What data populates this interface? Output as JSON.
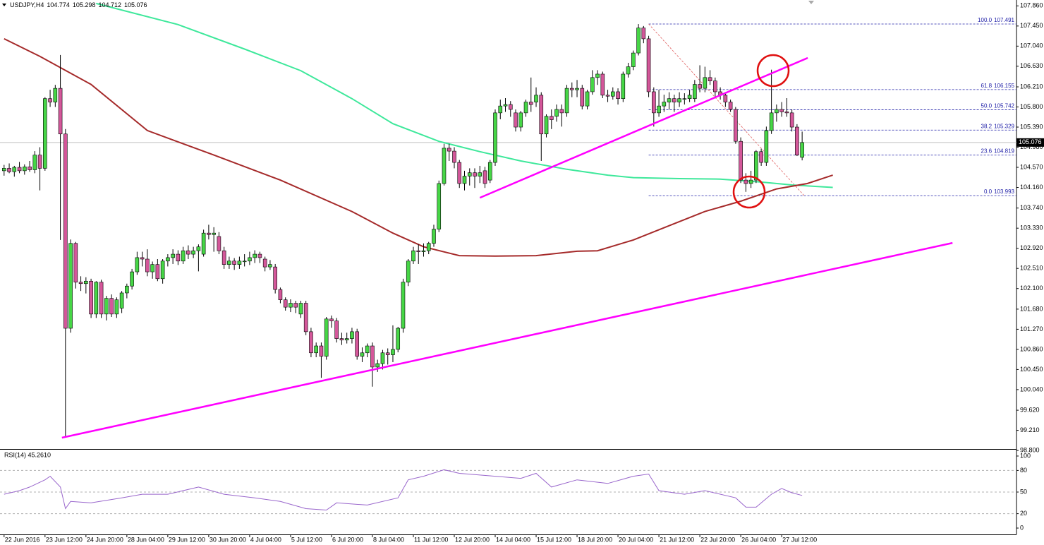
{
  "chart_data": {
    "type": "candlestick",
    "symbol": "USDJPY,H4",
    "bull_color": "#46d646",
    "bear_color": "#d4579a",
    "xlim": [
      -0.8,
      197.9
    ],
    "ylim": [
      98.83,
      107.98
    ],
    "grid": false,
    "xticks": [
      {
        "value": 0,
        "label": "22 Jun 2016"
      },
      {
        "value": 8,
        "label": "23 Jun 12:00"
      },
      {
        "value": 16,
        "label": "24 Jun 20:00"
      },
      {
        "value": 24,
        "label": "28 Jun 04:00"
      },
      {
        "value": 32,
        "label": "29 Jun 12:00"
      },
      {
        "value": 40,
        "label": "30 Jun 20:00"
      },
      {
        "value": 48,
        "label": "4 Jul 04:00"
      },
      {
        "value": 56,
        "label": "5 Jul 12:00"
      },
      {
        "value": 64,
        "label": "6 Jul 20:00"
      },
      {
        "value": 72,
        "label": "8 Jul 04:00"
      },
      {
        "value": 80,
        "label": "11 Jul 12:00"
      },
      {
        "value": 88,
        "label": "12 Jul 20:00"
      },
      {
        "value": 96,
        "label": "14 Jul 04:00"
      },
      {
        "value": 104,
        "label": "15 Jul 12:00"
      },
      {
        "value": 112,
        "label": "18 Jul 20:00"
      },
      {
        "value": 120,
        "label": "20 Jul 04:00"
      },
      {
        "value": 128,
        "label": "21 Jul 12:00"
      },
      {
        "value": 136,
        "label": "22 Jul 20:00"
      },
      {
        "value": 144,
        "label": "26 Jul 04:00"
      },
      {
        "value": 152,
        "label": "27 Jul 12:00"
      }
    ],
    "yticks": [
      {
        "value": 107.86,
        "label": "107.860"
      },
      {
        "value": 107.45,
        "label": "107.450"
      },
      {
        "value": 107.04,
        "label": "107.040"
      },
      {
        "value": 106.63,
        "label": "106.630"
      },
      {
        "value": 106.21,
        "label": "106.210"
      },
      {
        "value": 105.8,
        "label": "105.800"
      },
      {
        "value": 105.39,
        "label": "105.390"
      },
      {
        "value": 104.98,
        "label": "104.980"
      },
      {
        "value": 104.57,
        "label": "104.570"
      },
      {
        "value": 104.16,
        "label": "104.160"
      },
      {
        "value": 103.74,
        "label": "103.740"
      },
      {
        "value": 103.33,
        "label": "103.330"
      },
      {
        "value": 102.92,
        "label": "102.920"
      },
      {
        "value": 102.51,
        "label": "102.510"
      },
      {
        "value": 102.1,
        "label": "102.100"
      },
      {
        "value": 101.68,
        "label": "101.680"
      },
      {
        "value": 101.27,
        "label": "101.270"
      },
      {
        "value": 100.86,
        "label": "100.860"
      },
      {
        "value": 100.45,
        "label": "100.450"
      },
      {
        "value": 100.04,
        "label": "100.040"
      },
      {
        "value": 99.62,
        "label": "99.620"
      },
      {
        "value": 99.21,
        "label": "99.210"
      },
      {
        "value": 98.8,
        "label": "98.800"
      }
    ],
    "ohlc": [
      [
        104.5,
        104.62,
        104.4,
        104.55
      ],
      [
        104.55,
        104.65,
        104.45,
        104.48
      ],
      [
        104.48,
        104.6,
        104.38,
        104.57
      ],
      [
        104.57,
        104.68,
        104.45,
        104.5
      ],
      [
        104.5,
        104.63,
        104.42,
        104.58
      ],
      [
        104.58,
        104.7,
        104.48,
        104.52
      ],
      [
        104.52,
        104.9,
        104.45,
        104.82
      ],
      [
        104.82,
        104.98,
        104.1,
        104.55
      ],
      [
        104.55,
        106.0,
        104.5,
        105.97
      ],
      [
        105.97,
        106.15,
        105.8,
        105.9
      ],
      [
        105.9,
        106.25,
        105.8,
        106.18
      ],
      [
        106.18,
        106.86,
        103.09,
        105.25
      ],
      [
        105.25,
        105.35,
        99.09,
        101.29
      ],
      [
        101.29,
        103.1,
        101.2,
        103.02
      ],
      [
        103.02,
        103.05,
        102.1,
        102.23
      ],
      [
        102.23,
        102.35,
        102.05,
        102.2
      ],
      [
        102.2,
        102.33,
        102.0,
        102.25
      ],
      [
        102.25,
        102.3,
        101.5,
        101.58
      ],
      [
        101.58,
        102.25,
        101.5,
        102.23
      ],
      [
        102.23,
        102.28,
        101.5,
        101.58
      ],
      [
        101.58,
        101.95,
        101.45,
        101.9
      ],
      [
        101.9,
        101.98,
        101.52,
        101.58
      ],
      [
        101.58,
        101.92,
        101.5,
        101.87
      ],
      [
        101.7,
        102.05,
        101.6,
        102.01
      ],
      [
        102.01,
        102.2,
        101.9,
        102.15
      ],
      [
        102.15,
        102.5,
        102.08,
        102.44
      ],
      [
        102.44,
        102.85,
        102.38,
        102.73
      ],
      [
        102.73,
        102.85,
        102.55,
        102.7
      ],
      [
        102.7,
        102.9,
        102.35,
        102.44
      ],
      [
        102.44,
        102.65,
        102.3,
        102.59
      ],
      [
        102.59,
        102.7,
        102.25,
        102.3
      ],
      [
        102.3,
        102.7,
        102.2,
        102.66
      ],
      [
        102.66,
        102.8,
        102.55,
        102.73
      ],
      [
        102.73,
        102.9,
        102.6,
        102.8
      ],
      [
        102.8,
        102.88,
        102.58,
        102.66
      ],
      [
        102.66,
        102.95,
        102.6,
        102.87
      ],
      [
        102.87,
        102.98,
        102.7,
        102.8
      ],
      [
        102.8,
        102.95,
        102.72,
        102.87
      ],
      [
        102.87,
        103.0,
        102.45,
        102.95
      ],
      [
        102.8,
        103.3,
        102.75,
        103.23
      ],
      [
        103.23,
        103.4,
        103.1,
        103.2
      ],
      [
        103.2,
        103.35,
        102.85,
        103.23
      ],
      [
        103.16,
        103.25,
        102.8,
        102.87
      ],
      [
        102.87,
        102.95,
        102.5,
        102.59
      ],
      [
        102.59,
        102.75,
        102.5,
        102.66
      ],
      [
        102.66,
        102.72,
        102.48,
        102.59
      ],
      [
        102.59,
        102.75,
        102.5,
        102.66
      ],
      [
        102.66,
        102.8,
        102.55,
        102.66
      ],
      [
        102.66,
        102.85,
        102.58,
        102.73
      ],
      [
        102.73,
        102.88,
        102.62,
        102.8
      ],
      [
        102.8,
        102.85,
        102.62,
        102.73
      ],
      [
        102.7,
        102.75,
        102.45,
        102.54
      ],
      [
        102.54,
        102.68,
        102.48,
        102.59
      ],
      [
        102.54,
        102.6,
        102.0,
        102.08
      ],
      [
        102.08,
        102.12,
        101.8,
        101.87
      ],
      [
        101.87,
        101.92,
        101.65,
        101.72
      ],
      [
        101.72,
        101.88,
        101.62,
        101.8
      ],
      [
        101.8,
        101.85,
        101.6,
        101.72
      ],
      [
        101.58,
        101.85,
        101.5,
        101.8
      ],
      [
        101.8,
        101.85,
        101.15,
        101.22
      ],
      [
        101.22,
        101.3,
        100.7,
        100.79
      ],
      [
        100.79,
        101.0,
        100.7,
        100.93
      ],
      [
        100.93,
        101.0,
        100.28,
        100.72
      ],
      [
        100.72,
        101.52,
        100.65,
        101.48
      ],
      [
        101.48,
        101.55,
        101.3,
        101.44
      ],
      [
        101.44,
        101.5,
        101.0,
        101.08
      ],
      [
        101.08,
        101.2,
        100.95,
        101.05
      ],
      [
        101.05,
        101.2,
        100.98,
        101.08
      ],
      [
        101.08,
        101.3,
        100.98,
        101.22
      ],
      [
        101.22,
        101.28,
        100.65,
        100.72
      ],
      [
        100.72,
        100.9,
        100.6,
        100.79
      ],
      [
        100.79,
        100.98,
        100.7,
        100.93
      ],
      [
        100.93,
        101.0,
        100.1,
        100.5
      ],
      [
        100.5,
        100.65,
        100.4,
        100.57
      ],
      [
        100.57,
        100.85,
        100.45,
        100.79
      ],
      [
        100.79,
        100.88,
        100.55,
        100.75
      ],
      [
        100.75,
        101.35,
        100.6,
        100.86
      ],
      [
        100.86,
        101.32,
        100.8,
        101.29
      ],
      [
        101.29,
        102.3,
        101.2,
        102.23
      ],
      [
        102.23,
        102.7,
        102.15,
        102.66
      ],
      [
        102.66,
        102.95,
        102.6,
        102.87
      ],
      [
        102.87,
        103.0,
        102.6,
        102.85
      ],
      [
        102.85,
        103.02,
        102.75,
        102.87
      ],
      [
        102.87,
        103.05,
        102.8,
        103.02
      ],
      [
        103.02,
        103.4,
        102.95,
        103.31
      ],
      [
        103.31,
        104.3,
        103.25,
        104.24
      ],
      [
        104.24,
        105.05,
        104.2,
        104.96
      ],
      [
        104.96,
        105.05,
        104.7,
        104.9
      ],
      [
        104.9,
        104.98,
        104.55,
        104.67
      ],
      [
        104.67,
        104.72,
        104.15,
        104.24
      ],
      [
        104.24,
        104.5,
        104.1,
        104.39
      ],
      [
        104.39,
        104.55,
        104.2,
        104.46
      ],
      [
        104.46,
        104.55,
        104.15,
        104.39
      ],
      [
        104.39,
        104.6,
        104.25,
        104.46
      ],
      [
        104.5,
        104.58,
        104.15,
        104.24
      ],
      [
        104.31,
        104.72,
        104.25,
        104.67
      ],
      [
        104.67,
        105.75,
        104.6,
        105.68
      ],
      [
        105.68,
        105.95,
        105.55,
        105.82
      ],
      [
        105.82,
        105.98,
        105.7,
        105.85
      ],
      [
        105.85,
        105.92,
        105.6,
        105.75
      ],
      [
        105.68,
        105.75,
        105.3,
        105.39
      ],
      [
        105.39,
        105.72,
        105.3,
        105.68
      ],
      [
        105.68,
        105.95,
        105.6,
        105.9
      ],
      [
        105.9,
        106.4,
        105.7,
        105.85
      ],
      [
        105.9,
        106.2,
        105.8,
        106.04
      ],
      [
        106.04,
        106.1,
        104.7,
        105.25
      ],
      [
        105.25,
        105.65,
        105.18,
        105.61
      ],
      [
        105.61,
        105.75,
        105.35,
        105.54
      ],
      [
        105.61,
        105.85,
        105.5,
        105.75
      ],
      [
        105.75,
        105.85,
        105.4,
        105.68
      ],
      [
        105.68,
        106.25,
        105.6,
        106.18
      ],
      [
        106.18,
        106.3,
        106.0,
        106.15
      ],
      [
        106.15,
        106.35,
        106.0,
        106.18
      ],
      [
        106.18,
        106.25,
        105.75,
        105.82
      ],
      [
        105.82,
        106.15,
        105.75,
        106.11
      ],
      [
        106.11,
        106.55,
        106.05,
        106.4
      ],
      [
        106.4,
        106.55,
        106.25,
        106.47
      ],
      [
        106.47,
        106.52,
        105.98,
        106.04
      ],
      [
        106.04,
        106.15,
        105.9,
        106.02
      ],
      [
        106.02,
        106.2,
        105.95,
        106.11
      ],
      [
        106.11,
        106.18,
        105.85,
        105.97
      ],
      [
        105.97,
        106.52,
        105.9,
        106.47
      ],
      [
        106.47,
        106.7,
        106.4,
        106.62
      ],
      [
        106.62,
        106.95,
        106.55,
        106.9
      ],
      [
        106.9,
        107.49,
        106.85,
        107.41
      ],
      [
        107.41,
        107.45,
        107.1,
        107.19
      ],
      [
        107.19,
        107.25,
        106.0,
        106.11
      ],
      [
        106.11,
        106.2,
        105.4,
        105.68
      ],
      [
        105.68,
        106.15,
        105.6,
        105.82
      ],
      [
        105.82,
        106.05,
        105.7,
        105.9
      ],
      [
        105.9,
        106.1,
        105.75,
        105.97
      ],
      [
        105.97,
        106.05,
        105.7,
        105.9
      ],
      [
        105.9,
        106.1,
        105.8,
        105.97
      ],
      [
        105.97,
        106.08,
        105.85,
        105.97
      ],
      [
        105.97,
        106.15,
        105.9,
        106.04
      ],
      [
        105.97,
        106.35,
        105.9,
        106.26
      ],
      [
        106.26,
        106.65,
        106.1,
        106.18
      ],
      [
        106.18,
        106.62,
        106.1,
        106.4
      ],
      [
        106.4,
        106.55,
        106.25,
        106.33
      ],
      [
        106.33,
        106.4,
        106.0,
        106.11
      ],
      [
        106.11,
        106.2,
        105.95,
        106.04
      ],
      [
        106.04,
        106.1,
        105.8,
        105.9
      ],
      [
        105.9,
        105.95,
        105.7,
        105.75
      ],
      [
        105.75,
        105.8,
        105.05,
        105.1
      ],
      [
        105.1,
        105.18,
        104.25,
        104.31
      ],
      [
        104.31,
        104.45,
        104.07,
        104.24
      ],
      [
        104.24,
        104.5,
        104.15,
        104.31
      ],
      [
        104.31,
        104.92,
        104.25,
        104.89
      ],
      [
        104.89,
        104.95,
        104.6,
        104.67
      ],
      [
        104.67,
        105.4,
        104.6,
        105.32
      ],
      [
        105.32,
        106.56,
        105.25,
        105.68
      ],
      [
        105.68,
        105.85,
        105.5,
        105.75
      ],
      [
        105.75,
        105.9,
        105.6,
        105.7
      ],
      [
        105.7,
        105.98,
        105.6,
        105.68
      ],
      [
        105.68,
        105.75,
        105.3,
        105.39
      ],
      [
        105.39,
        105.45,
        104.8,
        104.82
      ],
      [
        104.774,
        105.298,
        104.712,
        105.076
      ]
    ],
    "moving_averages": [
      {
        "color": "#3ee89b",
        "x": [
          18,
          34,
          47,
          58,
          68,
          76,
          85,
          93,
          101,
          110,
          118,
          123,
          132,
          140,
          148,
          154,
          162
        ],
        "values": [
          107.91,
          107.48,
          106.98,
          106.54,
          105.97,
          105.46,
          105.1,
          104.89,
          104.7,
          104.53,
          104.41,
          104.36,
          104.34,
          104.33,
          104.27,
          104.21,
          104.16
        ]
      },
      {
        "color": "#a52a2a",
        "x": [
          0,
          7,
          17,
          28,
          41,
          54,
          68,
          76,
          82,
          89,
          96,
          104,
          112,
          116,
          123,
          130,
          137,
          144,
          151,
          157,
          162
        ],
        "values": [
          107.19,
          106.83,
          106.26,
          105.32,
          104.82,
          104.31,
          103.67,
          103.23,
          102.95,
          102.77,
          102.76,
          102.77,
          102.86,
          102.87,
          103.09,
          103.38,
          103.67,
          103.88,
          104.13,
          104.24,
          104.41
        ]
      }
    ],
    "trendlines": [
      {
        "color": "#ff00ff",
        "x": [
          11.3,
          185.4
        ],
        "values": [
          99.06,
          103.03
        ]
      },
      {
        "color": "#ff00ff",
        "x": [
          93,
          157.1
        ],
        "values": [
          103.95,
          106.8
        ]
      }
    ],
    "fibonacci": {
      "color": "#2020a8",
      "diagonal_color": "#e06060",
      "x": [
        126,
        156.4
      ],
      "levels": [
        {
          "level": "100.0",
          "price": 107.491
        },
        {
          "level": "61.8",
          "price": 106.155
        },
        {
          "level": "50.0",
          "price": 105.742
        },
        {
          "level": "38.2",
          "price": 105.329
        },
        {
          "level": "23.6",
          "price": 104.819
        },
        {
          "level": "0.0",
          "price": 103.993
        }
      ]
    },
    "rsi": {
      "label": "RSI(14) 45.2610",
      "color": "#9966cc",
      "ylim": [
        -8.8,
        108.8
      ],
      "yticks": [
        100,
        80,
        50,
        20,
        0
      ],
      "x": [
        0,
        3,
        5,
        8,
        9,
        11,
        12,
        13,
        17,
        23,
        27,
        32,
        38,
        43,
        49,
        54,
        59,
        63,
        65,
        71,
        77,
        79,
        82,
        86,
        89,
        96,
        101,
        104,
        107,
        112,
        118,
        123,
        126,
        128,
        133,
        137,
        143,
        145,
        147,
        150,
        152,
        154,
        156
      ],
      "values": [
        47,
        52,
        57,
        67,
        72,
        57,
        27,
        37,
        35,
        42,
        47,
        47,
        57,
        47,
        42,
        37,
        27,
        25,
        35,
        32,
        42,
        67,
        72,
        81,
        76,
        72,
        69,
        76,
        57,
        67,
        62,
        72,
        75,
        52,
        47,
        52,
        42,
        29,
        29,
        47,
        55,
        49,
        45.26
      ]
    }
  }
}
